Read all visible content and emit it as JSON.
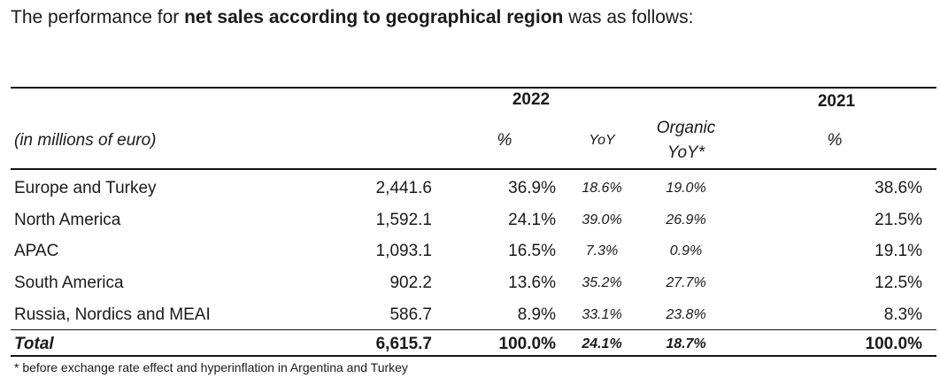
{
  "intro": {
    "before": "The performance for ",
    "bold": "net sales according to geographical region",
    "after": " was as follows:"
  },
  "header": {
    "year_2022": "2022",
    "year_2021": "2021",
    "unit_label": "(in millions of euro)",
    "pct_2022": "%",
    "yoy": "YoY",
    "organic_yoy_line1": "Organic",
    "organic_yoy_line2": "YoY*",
    "pct_2021": "%"
  },
  "rows": [
    {
      "region": "Europe and Turkey",
      "sales": "2,441.6",
      "pct_2022": "36.9%",
      "yoy": "18.6%",
      "organic_yoy": "19.0%",
      "pct_2021": "38.6%"
    },
    {
      "region": "North America",
      "sales": "1,592.1",
      "pct_2022": "24.1%",
      "yoy": "39.0%",
      "organic_yoy": "26.9%",
      "pct_2021": "21.5%"
    },
    {
      "region": "APAC",
      "sales": "1,093.1",
      "pct_2022": "16.5%",
      "yoy": "7.3%",
      "organic_yoy": "0.9%",
      "pct_2021": "19.1%"
    },
    {
      "region": "South America",
      "sales": "902.2",
      "pct_2022": "13.6%",
      "yoy": "35.2%",
      "organic_yoy": "27.7%",
      "pct_2021": "12.5%"
    },
    {
      "region": "Russia, Nordics and MEAI",
      "sales": "586.7",
      "pct_2022": "8.9%",
      "yoy": "33.1%",
      "organic_yoy": "23.8%",
      "pct_2021": "8.3%"
    }
  ],
  "total": {
    "region": "Total",
    "sales": "6,615.7",
    "pct_2022": "100.0%",
    "yoy": "24.1%",
    "organic_yoy": "18.7%",
    "pct_2021": "100.0%"
  },
  "footnote": "* before exchange rate effect and hyperinflation in Argentina and Turkey"
}
